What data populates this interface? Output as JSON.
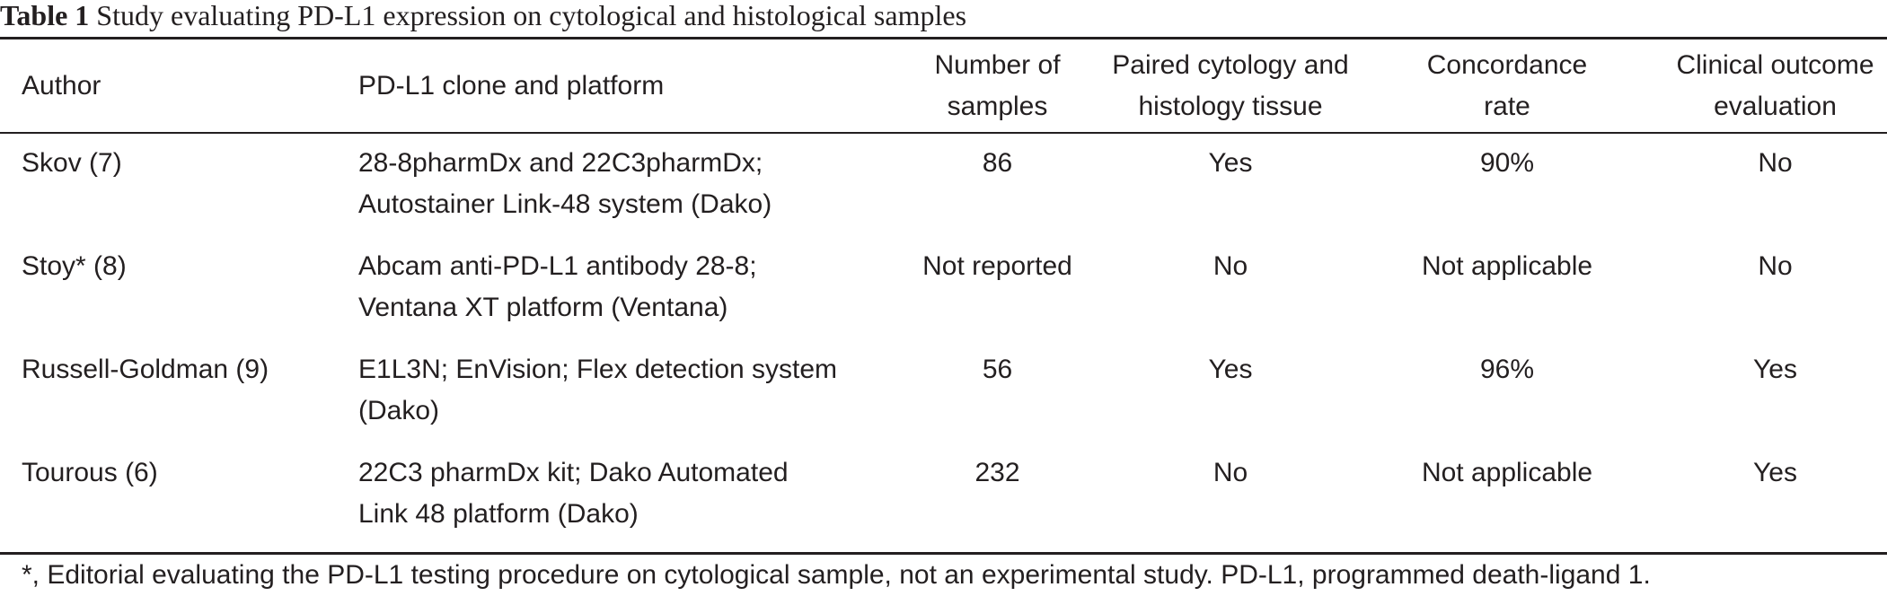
{
  "caption": {
    "label": "Table 1",
    "text": "Study evaluating PD-L1 expression on cytological and histological samples"
  },
  "headers": {
    "author": "Author",
    "clone": "PD-L1 clone and platform",
    "samples_l1": "Number of",
    "samples_l2": "samples",
    "paired_l1": "Paired cytology and",
    "paired_l2": "histology tissue",
    "concordance_l1": "Concordance",
    "concordance_l2": "rate",
    "outcome_l1": "Clinical outcome",
    "outcome_l2": "evaluation"
  },
  "rows": [
    {
      "author": "Skov (7)",
      "clone_l1": "28-8pharmDx and 22C3pharmDx;",
      "clone_l2": "Autostainer Link-48 system (Dako)",
      "samples": "86",
      "paired": "Yes",
      "concordance": "90%",
      "outcome": "No"
    },
    {
      "author": "Stoy* (8)",
      "clone_l1": "Abcam anti-PD-L1 antibody 28-8;",
      "clone_l2": "Ventana XT platform (Ventana)",
      "samples": "Not reported",
      "paired": "No",
      "concordance": "Not applicable",
      "outcome": "No"
    },
    {
      "author": "Russell-Goldman (9)",
      "clone_l1": "E1L3N; EnVision; Flex detection system",
      "clone_l2": "(Dako)",
      "samples": "56",
      "paired": "Yes",
      "concordance": "96%",
      "outcome": "Yes"
    },
    {
      "author": "Tourous (6)",
      "clone_l1": "22C3 pharmDx kit; Dako Automated",
      "clone_l2": "Link 48 platform (Dako)",
      "samples": "232",
      "paired": "No",
      "concordance": "Not applicable",
      "outcome": "Yes"
    }
  ],
  "footnote": "*, Editorial evaluating the PD-L1 testing procedure on cytological sample, not an experimental study. PD-L1, programmed death-ligand 1."
}
